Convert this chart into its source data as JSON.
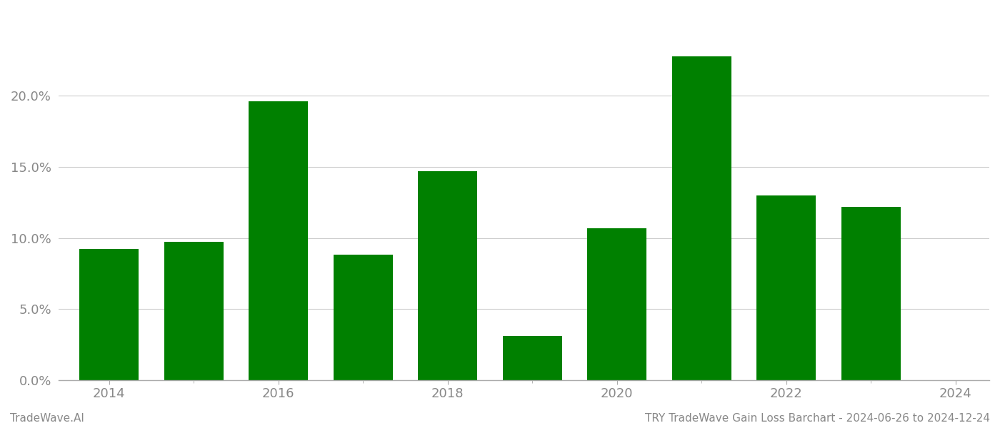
{
  "years": [
    2014,
    2015,
    2016,
    2017,
    2018,
    2019,
    2020,
    2021,
    2022,
    2023
  ],
  "values": [
    0.092,
    0.097,
    0.196,
    0.088,
    0.147,
    0.031,
    0.107,
    0.228,
    0.13,
    0.122
  ],
  "bar_color": "#008000",
  "background_color": "#ffffff",
  "grid_color": "#cccccc",
  "ylim": [
    0,
    0.26
  ],
  "yticks": [
    0.0,
    0.05,
    0.1,
    0.15,
    0.2
  ],
  "xticks_labels": [
    2014,
    2016,
    2018,
    2020,
    2022,
    2024
  ],
  "xlim": [
    2013.4,
    2024.4
  ],
  "tick_fontsize": 13,
  "footer_left": "TradeWave.AI",
  "footer_right": "TRY TradeWave Gain Loss Barchart - 2024-06-26 to 2024-12-24",
  "footer_fontsize": 11,
  "bar_width": 0.7,
  "spine_color": "#aaaaaa",
  "tick_label_color": "#888888"
}
